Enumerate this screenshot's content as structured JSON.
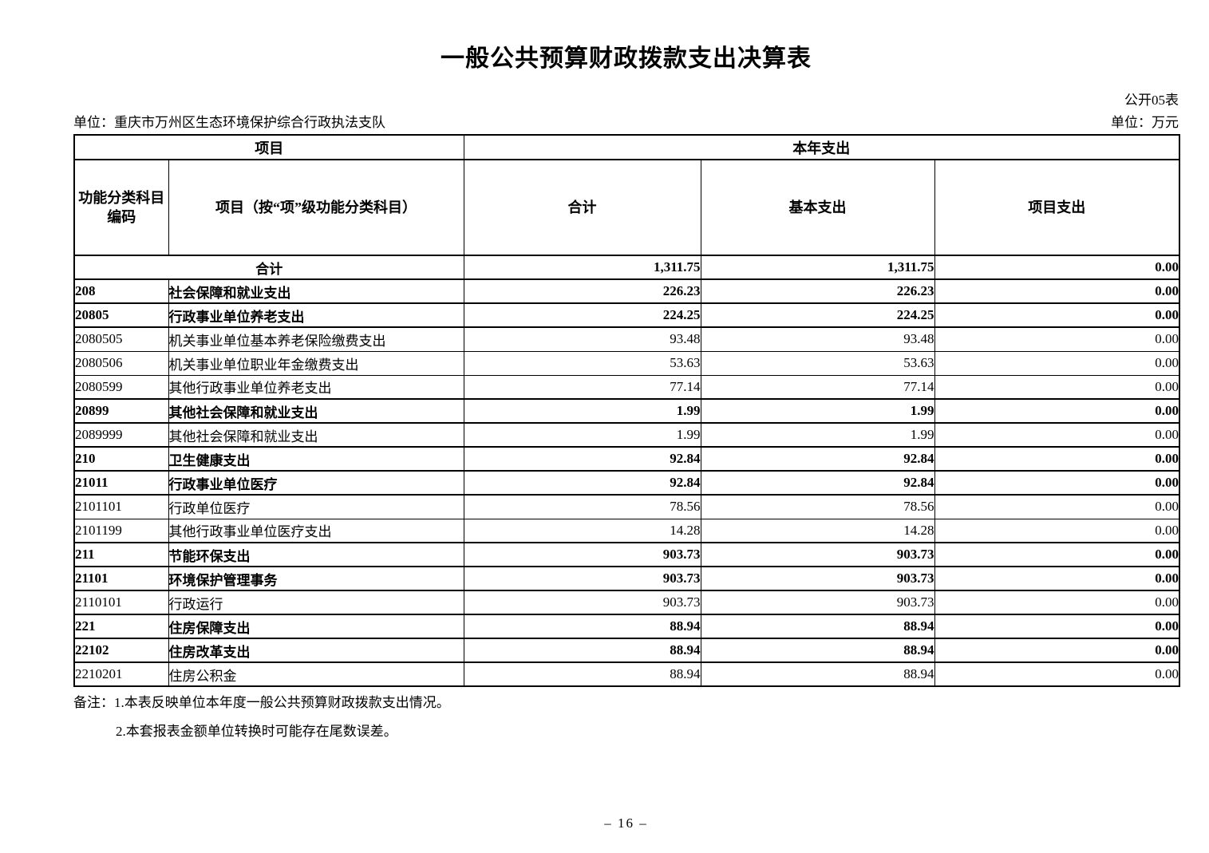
{
  "page": {
    "title": "一般公共预算财政拨款支出决算表",
    "table_code": "公开05表",
    "org_label": "单位：重庆市万州区生态环境保护综合行政执法支队",
    "unit_label": "单位：万元",
    "page_number": "– 16 –"
  },
  "table": {
    "header": {
      "group_left": "项目",
      "group_right": "本年支出",
      "col_code_line1": "功能分类科目",
      "col_code_line2": "编码",
      "col_item": "项目（按“项”级功能分类科目）",
      "col_total": "合计",
      "col_basic": "基本支出",
      "col_project": "项目支出"
    },
    "rows": [
      {
        "code": "",
        "item": "合计",
        "total": "1,311.75",
        "basic": "1,311.75",
        "project": "0.00",
        "bold": true,
        "merged": true
      },
      {
        "code": "208",
        "item": "社会保障和就业支出",
        "total": "226.23",
        "basic": "226.23",
        "project": "0.00",
        "bold": true,
        "merged": false
      },
      {
        "code": "20805",
        "item": "行政事业单位养老支出",
        "total": "224.25",
        "basic": "224.25",
        "project": "0.00",
        "bold": true,
        "merged": false
      },
      {
        "code": "2080505",
        "item": "机关事业单位基本养老保险缴费支出",
        "total": "93.48",
        "basic": "93.48",
        "project": "0.00",
        "bold": false,
        "merged": false
      },
      {
        "code": "2080506",
        "item": "机关事业单位职业年金缴费支出",
        "total": "53.63",
        "basic": "53.63",
        "project": "0.00",
        "bold": false,
        "merged": false
      },
      {
        "code": "2080599",
        "item": "其他行政事业单位养老支出",
        "total": "77.14",
        "basic": "77.14",
        "project": "0.00",
        "bold": false,
        "merged": false
      },
      {
        "code": "20899",
        "item": "其他社会保障和就业支出",
        "total": "1.99",
        "basic": "1.99",
        "project": "0.00",
        "bold": true,
        "merged": false
      },
      {
        "code": "2089999",
        "item": "其他社会保障和就业支出",
        "total": "1.99",
        "basic": "1.99",
        "project": "0.00",
        "bold": false,
        "merged": false
      },
      {
        "code": "210",
        "item": "卫生健康支出",
        "total": "92.84",
        "basic": "92.84",
        "project": "0.00",
        "bold": true,
        "merged": false
      },
      {
        "code": "21011",
        "item": "行政事业单位医疗",
        "total": "92.84",
        "basic": "92.84",
        "project": "0.00",
        "bold": true,
        "merged": false
      },
      {
        "code": "2101101",
        "item": "行政单位医疗",
        "total": "78.56",
        "basic": "78.56",
        "project": "0.00",
        "bold": false,
        "merged": false
      },
      {
        "code": "2101199",
        "item": "其他行政事业单位医疗支出",
        "total": "14.28",
        "basic": "14.28",
        "project": "0.00",
        "bold": false,
        "merged": false
      },
      {
        "code": "211",
        "item": "节能环保支出",
        "total": "903.73",
        "basic": "903.73",
        "project": "0.00",
        "bold": true,
        "merged": false
      },
      {
        "code": "21101",
        "item": "环境保护管理事务",
        "total": "903.73",
        "basic": "903.73",
        "project": "0.00",
        "bold": true,
        "merged": false
      },
      {
        "code": "2110101",
        "item": "行政运行",
        "total": "903.73",
        "basic": "903.73",
        "project": "0.00",
        "bold": false,
        "merged": false
      },
      {
        "code": "221",
        "item": "住房保障支出",
        "total": "88.94",
        "basic": "88.94",
        "project": "0.00",
        "bold": true,
        "merged": false
      },
      {
        "code": "22102",
        "item": "住房改革支出",
        "total": "88.94",
        "basic": "88.94",
        "project": "0.00",
        "bold": true,
        "merged": false
      },
      {
        "code": "2210201",
        "item": "住房公积金",
        "total": "88.94",
        "basic": "88.94",
        "project": "0.00",
        "bold": false,
        "merged": false
      }
    ]
  },
  "notes": {
    "line1": "备注：1.本表反映单位本年度一般公共预算财政拨款支出情况。",
    "line2": "2.本套报表金额单位转换时可能存在尾数误差。"
  }
}
